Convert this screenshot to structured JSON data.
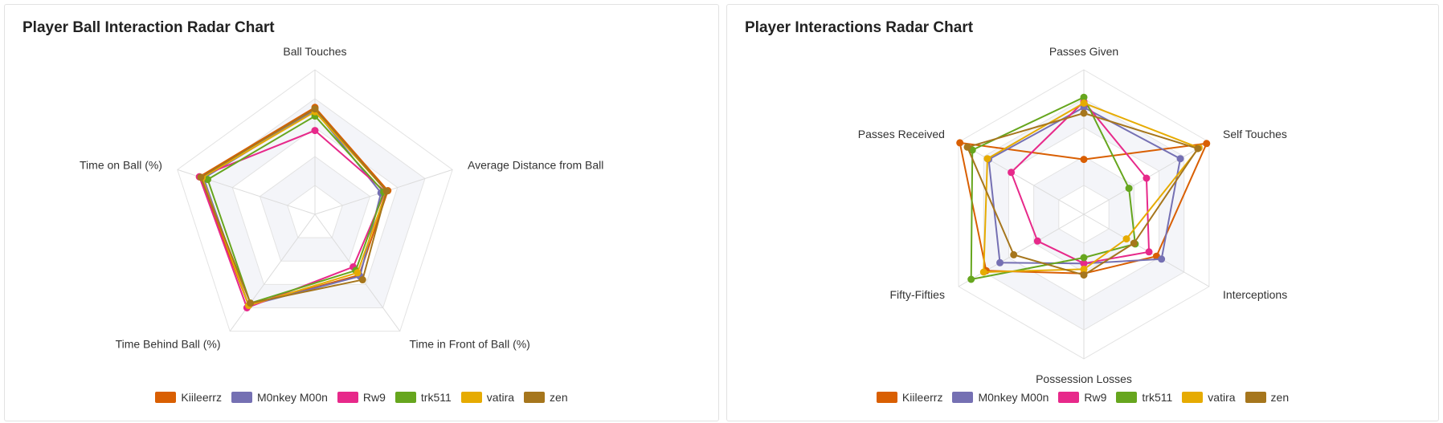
{
  "charts": [
    {
      "title": "Player Ball Interaction Radar Chart"
    },
    {
      "title": "Player Interactions Radar Chart"
    }
  ],
  "colors": {
    "Kiileerrz": "#d95f02",
    "M0nkey M00n": "#7570b3",
    "Rw9": "#e7298a",
    "trk511": "#66a61e",
    "vatira": "#e6ab02",
    "zen": "#a6761d"
  },
  "chart_data": [
    {
      "type": "radar",
      "title": "Player Ball Interaction Radar Chart",
      "axes": [
        "Ball Touches",
        "Average Distance from Ball",
        "Time in Front of Ball (%)",
        "Time Behind Ball (%)",
        "Time on Ball (%)"
      ],
      "scale": [
        0,
        1
      ],
      "grid_levels": 5,
      "legend": "bottom",
      "series": [
        {
          "name": "Kiileerrz",
          "values": [
            0.74,
            0.53,
            0.52,
            0.78,
            0.84
          ]
        },
        {
          "name": "M0nkey M00n",
          "values": [
            0.72,
            0.48,
            0.53,
            0.78,
            0.81
          ]
        },
        {
          "name": "Rw9",
          "values": [
            0.58,
            0.51,
            0.45,
            0.8,
            0.84
          ]
        },
        {
          "name": "trk511",
          "values": [
            0.68,
            0.5,
            0.48,
            0.76,
            0.78
          ]
        },
        {
          "name": "vatira",
          "values": [
            0.71,
            0.52,
            0.5,
            0.78,
            0.82
          ]
        },
        {
          "name": "zen",
          "values": [
            0.73,
            0.52,
            0.56,
            0.76,
            0.83
          ]
        }
      ]
    },
    {
      "type": "radar",
      "title": "Player Interactions Radar Chart",
      "axes": [
        "Passes Given",
        "Self Touches",
        "Interceptions",
        "Possession Losses",
        "Fifty-Fifties",
        "Passes Received"
      ],
      "scale": [
        0,
        1
      ],
      "grid_levels": 5,
      "legend": "bottom",
      "series": [
        {
          "name": "Kiileerrz",
          "values": [
            0.38,
            0.98,
            0.58,
            0.41,
            0.78,
            0.99
          ]
        },
        {
          "name": "M0nkey M00n",
          "values": [
            0.74,
            0.77,
            0.62,
            0.34,
            0.67,
            0.76
          ]
        },
        {
          "name": "Rw9",
          "values": [
            0.78,
            0.5,
            0.52,
            0.34,
            0.37,
            0.58
          ]
        },
        {
          "name": "trk511",
          "values": [
            0.81,
            0.36,
            0.41,
            0.3,
            0.9,
            0.89
          ]
        },
        {
          "name": "vatira",
          "values": [
            0.77,
            0.92,
            0.34,
            0.38,
            0.8,
            0.77
          ]
        },
        {
          "name": "zen",
          "values": [
            0.7,
            0.91,
            0.4,
            0.42,
            0.56,
            0.93
          ]
        }
      ]
    }
  ]
}
